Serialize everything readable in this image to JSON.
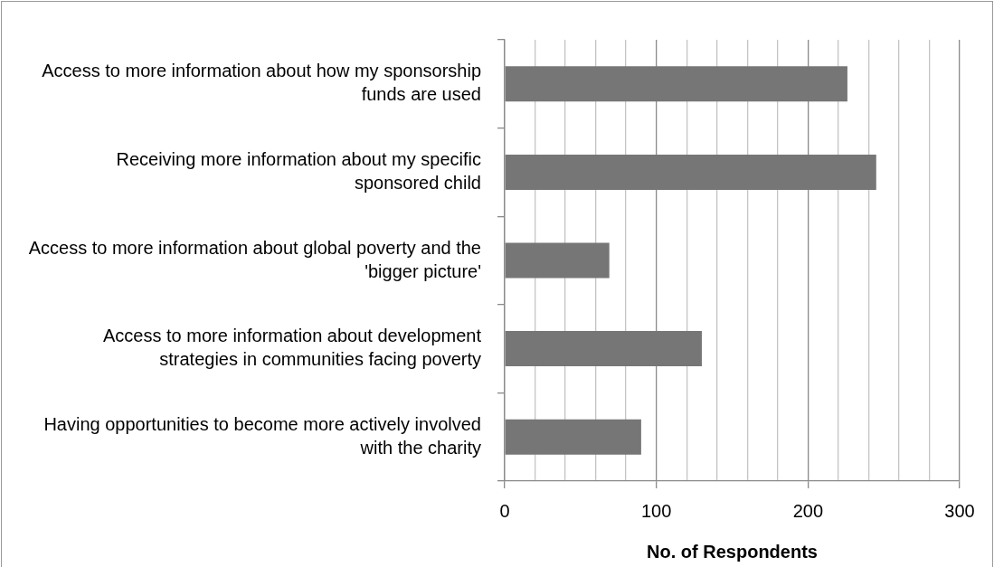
{
  "chart_data": {
    "type": "bar",
    "orientation": "horizontal",
    "xlabel": "No. of Respondents",
    "categories": [
      "Access to more information about how my sponsorship funds are used",
      "Receiving more information about my specific sponsored child",
      "Access to more information about global poverty and the 'bigger picture'",
      "Access to more information about development strategies in communities facing poverty",
      "Having opportunities to become more actively involved with the charity"
    ],
    "values": [
      226,
      245,
      69,
      130,
      90
    ],
    "color": "#767676",
    "xlim": [
      0,
      300
    ],
    "xticks": [
      0,
      {
        "value": 20,
        "label": null
      },
      {
        "value": 40,
        "label": null
      },
      {
        "value": 60,
        "label": null
      },
      {
        "value": 80,
        "label": null
      },
      100,
      {
        "value": 120,
        "label": null
      },
      {
        "value": 140,
        "label": null
      },
      {
        "value": 160,
        "label": null
      },
      {
        "value": 180,
        "label": null
      },
      200,
      {
        "value": 220,
        "label": null
      },
      {
        "value": 240,
        "label": null
      },
      {
        "value": 260,
        "label": null
      },
      {
        "value": 280,
        "label": null
      },
      300
    ],
    "grid": "x",
    "legend": false
  }
}
